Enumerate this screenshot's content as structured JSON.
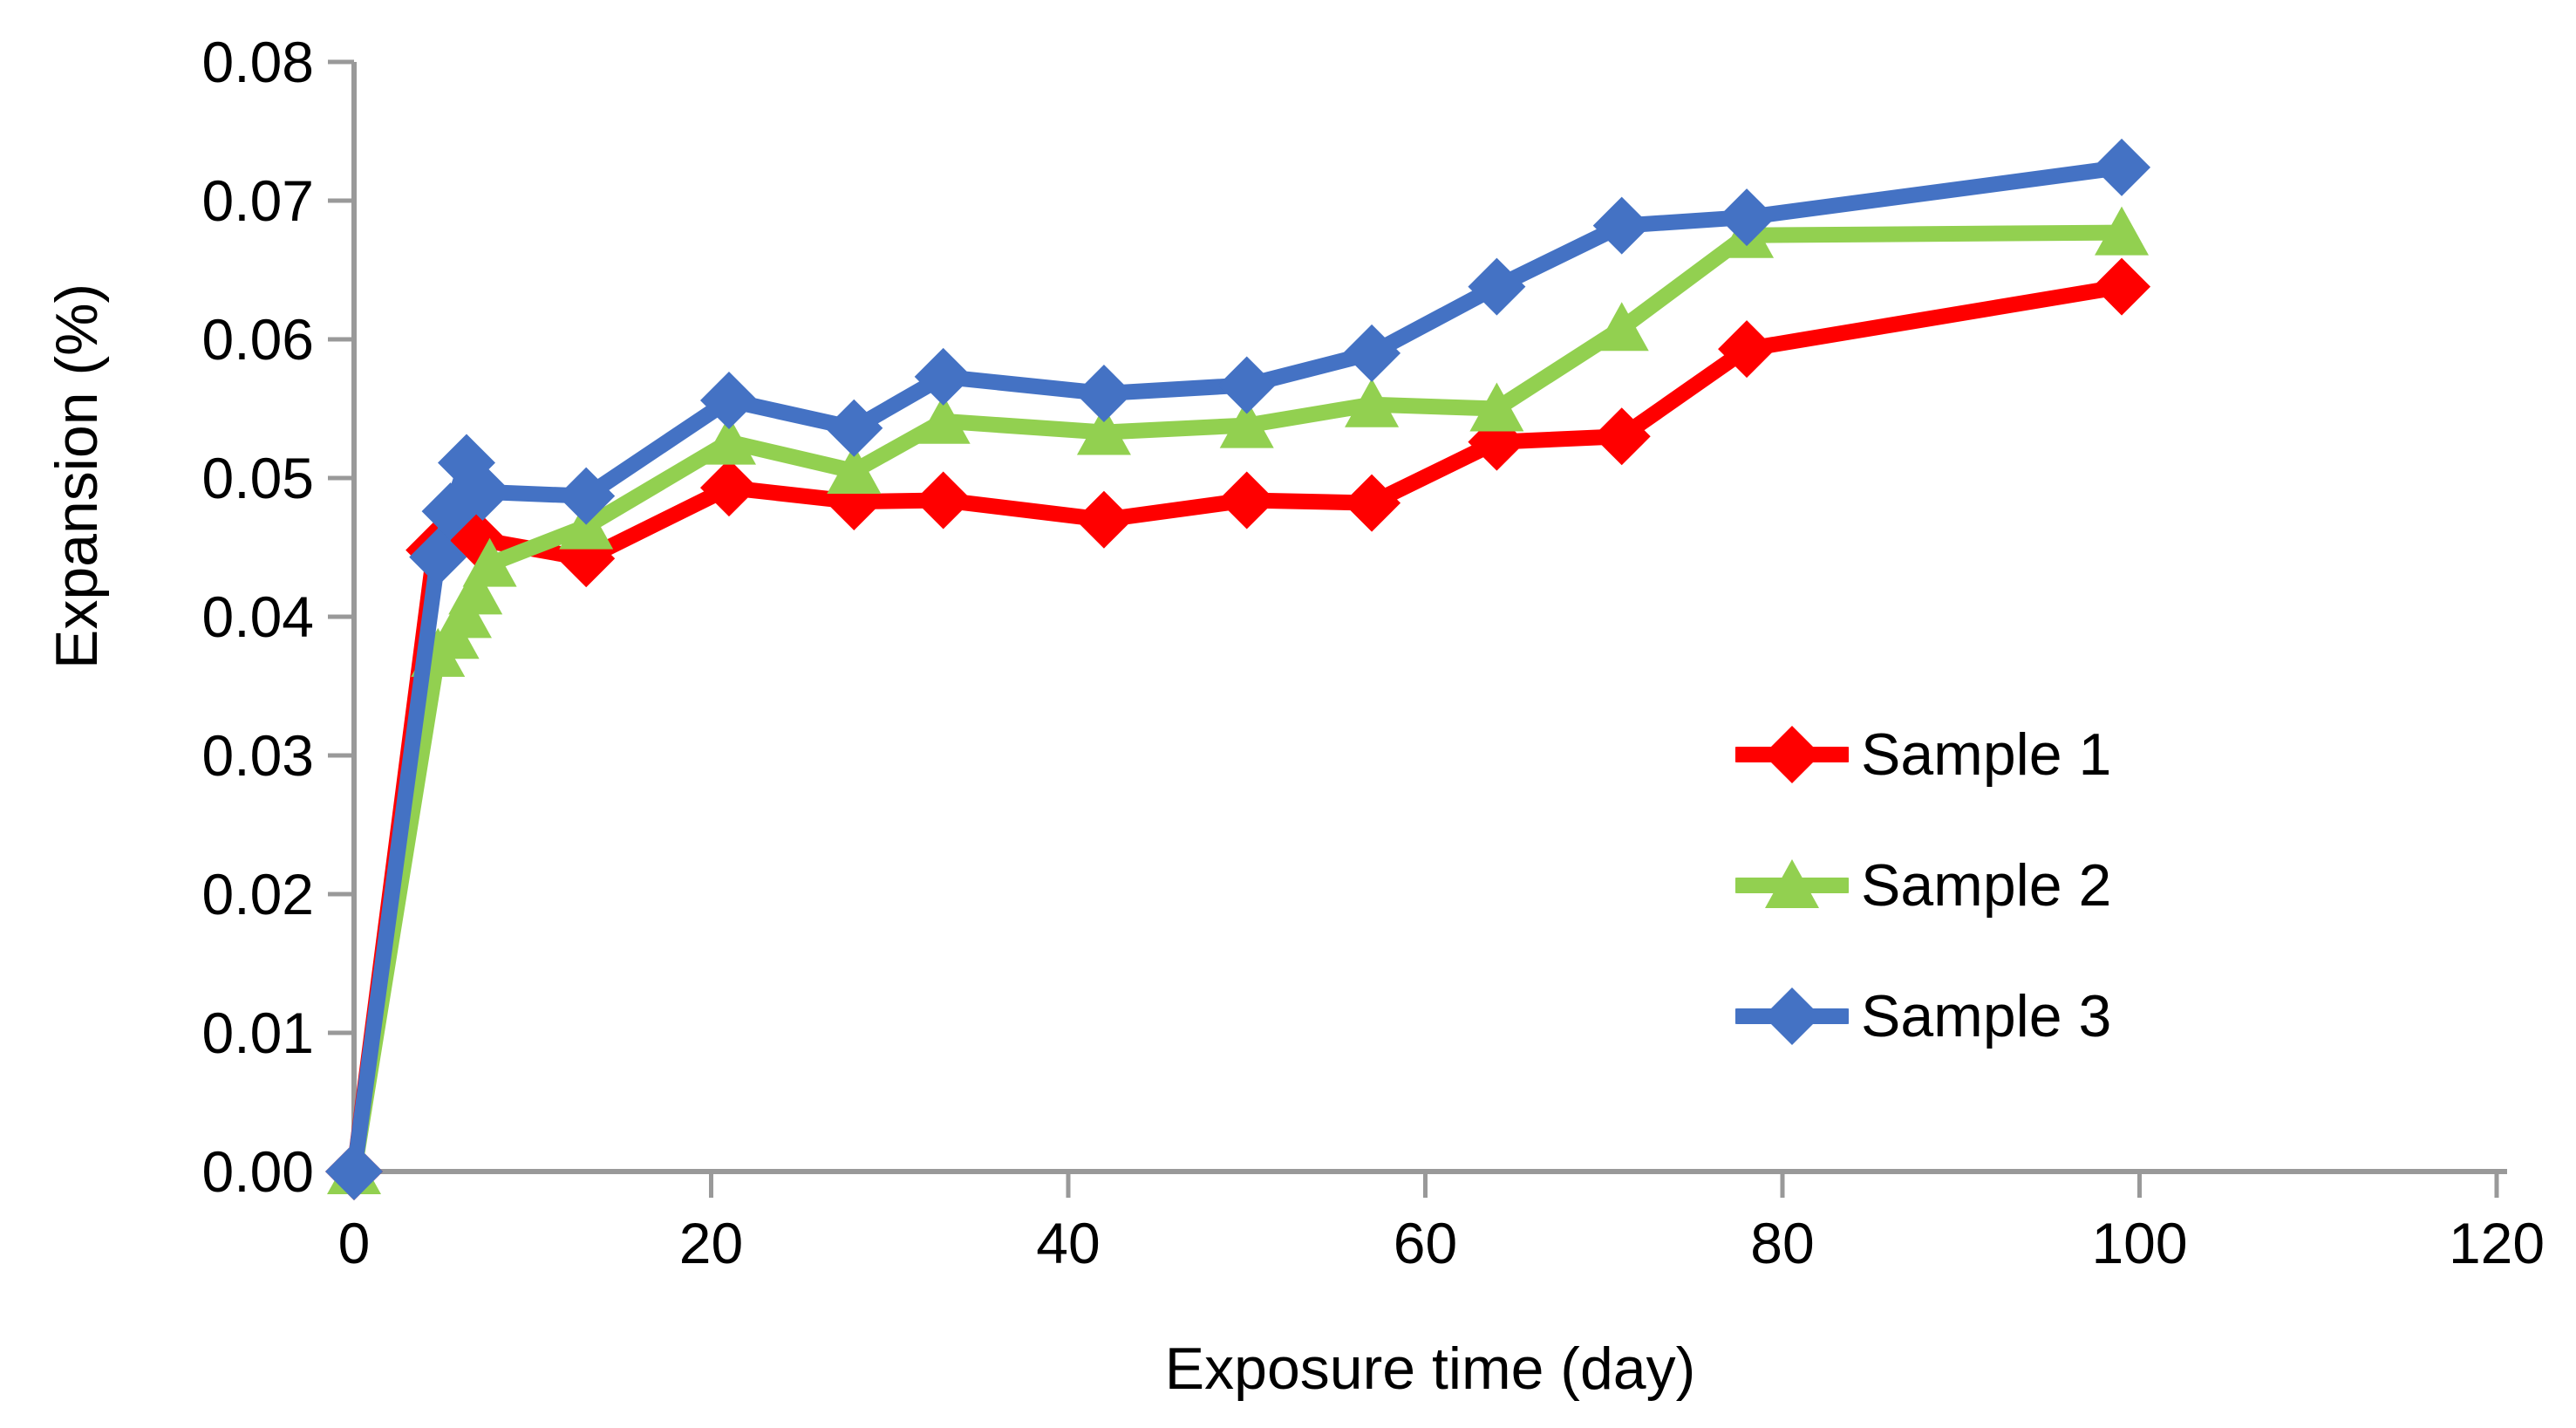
{
  "chart_data": {
    "type": "line",
    "title": "",
    "xlabel": "Exposure time (day)",
    "ylabel": "Expansion (%)",
    "xlim": [
      0,
      120
    ],
    "ylim": [
      0.0,
      0.08
    ],
    "x_ticks": [
      "0",
      "20",
      "40",
      "60",
      "80",
      "100",
      "120"
    ],
    "x_tick_values": [
      0,
      20,
      40,
      60,
      80,
      100,
      120
    ],
    "y_ticks": [
      "0.00",
      "0.01",
      "0.02",
      "0.03",
      "0.04",
      "0.05",
      "0.06",
      "0.07",
      "0.08"
    ],
    "y_tick_values": [
      0,
      0.01,
      0.02,
      0.03,
      0.04,
      0.05,
      0.06,
      0.07,
      0.08
    ],
    "grid": false,
    "legend_position": "middle-right",
    "axis_color": "#999999",
    "text_color": "#000000",
    "series": [
      {
        "name": "Sample 1",
        "color": "#FF0000",
        "marker": "diamond",
        "points": [
          [
            0,
            0.0
          ],
          [
            4.5,
            0.0448
          ],
          [
            6.9,
            0.0456
          ],
          [
            13,
            0.0442
          ],
          [
            21,
            0.0493
          ],
          [
            28,
            0.0483
          ],
          [
            33,
            0.0484
          ],
          [
            42,
            0.047
          ],
          [
            50,
            0.0484
          ],
          [
            57,
            0.0482
          ],
          [
            64,
            0.0526
          ],
          [
            71,
            0.053
          ],
          [
            78,
            0.0593
          ],
          [
            99,
            0.0638
          ]
        ]
      },
      {
        "name": "Sample 2",
        "color": "#92D050",
        "marker": "triangle",
        "points": [
          [
            0,
            0.0
          ],
          [
            4.7,
            0.0373
          ],
          [
            5.5,
            0.0386
          ],
          [
            6.2,
            0.0401
          ],
          [
            6.8,
            0.0418
          ],
          [
            7.6,
            0.0438
          ],
          [
            13,
            0.0465
          ],
          [
            21,
            0.0526
          ],
          [
            28,
            0.0505
          ],
          [
            33,
            0.0541
          ],
          [
            42,
            0.0533
          ],
          [
            50,
            0.0538
          ],
          [
            57,
            0.0553
          ],
          [
            64,
            0.055
          ],
          [
            71,
            0.0608
          ],
          [
            78,
            0.0675
          ],
          [
            99,
            0.0677
          ]
        ]
      },
      {
        "name": "Sample 3",
        "color": "#4472C4",
        "marker": "diamond",
        "points": [
          [
            0,
            0.0
          ],
          [
            4.7,
            0.0443
          ],
          [
            5.4,
            0.0476
          ],
          [
            6.3,
            0.0511
          ],
          [
            7.2,
            0.049
          ],
          [
            13,
            0.0487
          ],
          [
            21,
            0.0556
          ],
          [
            28,
            0.0536
          ],
          [
            33,
            0.0573
          ],
          [
            42,
            0.0561
          ],
          [
            50,
            0.0567
          ],
          [
            57,
            0.059
          ],
          [
            64,
            0.0638
          ],
          [
            71,
            0.0682
          ],
          [
            78,
            0.0688
          ],
          [
            99,
            0.0724
          ]
        ]
      }
    ]
  }
}
